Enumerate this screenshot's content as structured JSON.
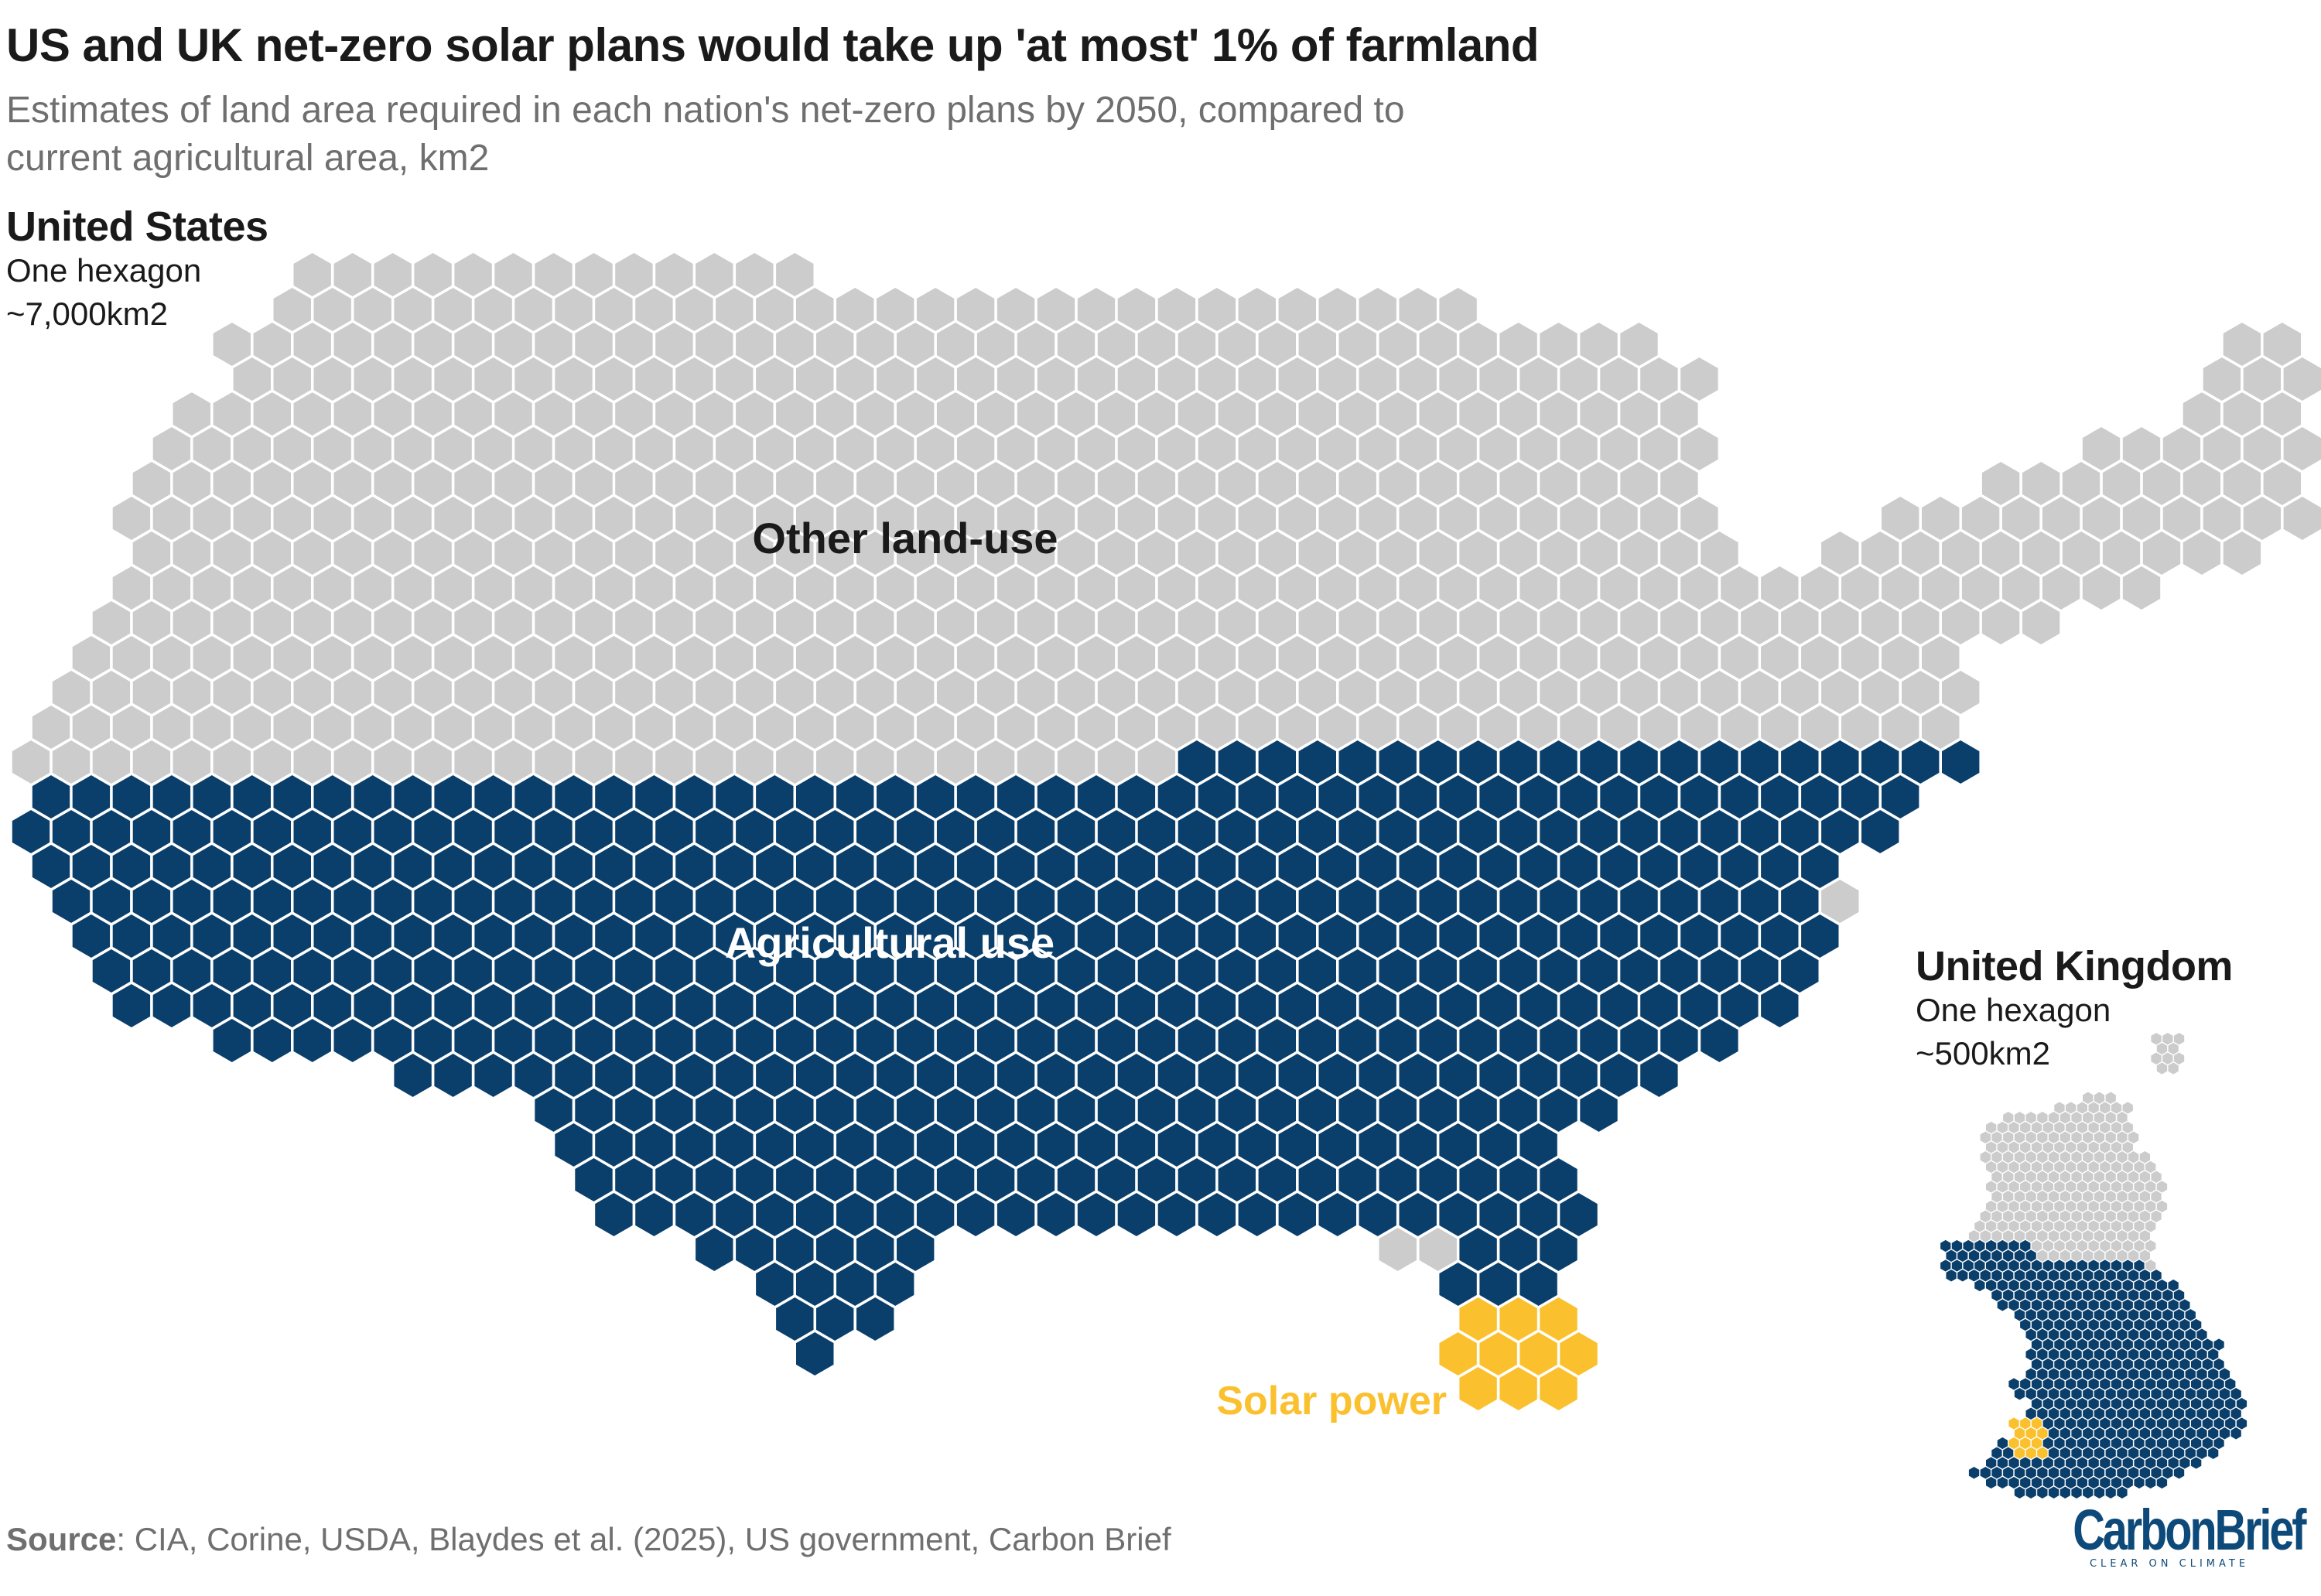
{
  "title": "US and UK net-zero solar plans would take up 'at most' 1% of farmland",
  "subtitle": "Estimates of land area required in each nation's net-zero plans by 2050, compared to current agricultural area, km2",
  "colors": {
    "other": "#cccccc",
    "agricultural": "#0b3f6b",
    "solar": "#fbc02d",
    "hex_edge": "#ffffff"
  },
  "us": {
    "heading": "United States",
    "unit_line1": "One hexagon",
    "unit_line2": "~7,000km2",
    "label_other": "Other land-use",
    "label_agri": "Agricultural use",
    "label_solar": "Solar power"
  },
  "uk": {
    "heading": "United Kingdom",
    "unit_line1": "One hexagon",
    "unit_line2": "~500km2"
  },
  "source": {
    "label": "Source",
    "text": ": CIA, Corine, USDA, Blaydes et al. (2025), US government, Carbon Brief"
  },
  "logo": {
    "main": "CarbonBrief",
    "tagline": "CLEAR ON CLIMATE"
  },
  "chart_data": [
    {
      "type": "hexagon-map",
      "title": "United States",
      "unit": "One hexagon ~7,000km2",
      "series": [
        {
          "name": "Other land-use"
        },
        {
          "name": "Agricultural use"
        },
        {
          "name": "Solar power"
        }
      ]
    },
    {
      "type": "hexagon-map",
      "title": "United Kingdom",
      "unit": "One hexagon ~500km2",
      "series": [
        {
          "name": "Other land-use"
        },
        {
          "name": "Agricultural use"
        },
        {
          "name": "Solar power"
        }
      ]
    }
  ]
}
